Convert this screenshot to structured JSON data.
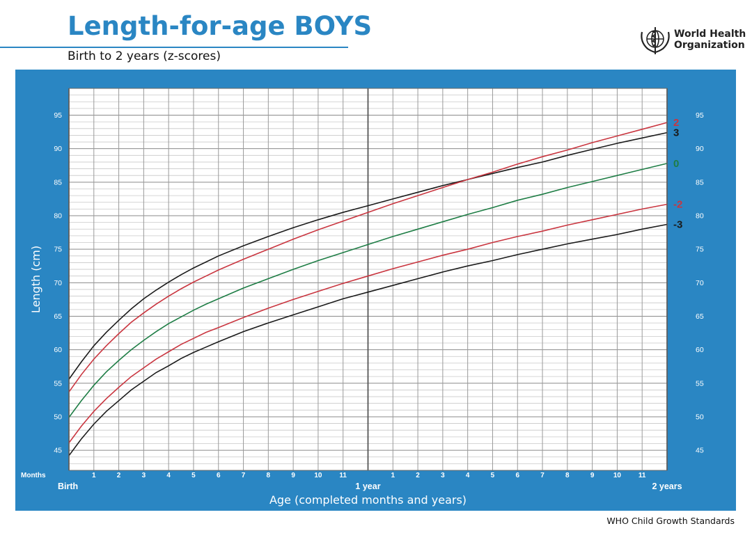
{
  "header": {
    "title": "Length-for-age BOYS",
    "subtitle": "Birth to 2 years (z-scores)",
    "org_line1": "World Health",
    "org_line2": "Organization",
    "logo_icon": "who-emblem-icon"
  },
  "footer": {
    "text": "WHO Child Growth Standards"
  },
  "colors": {
    "brand_blue": "#2a86c3",
    "z3": "#1a1a1a",
    "z2": "#c9353f",
    "z0": "#1e7d45",
    "zneg2": "#c9353f",
    "zneg3": "#1a1a1a"
  },
  "chart_data": {
    "type": "line",
    "title": "Length-for-age BOYS",
    "subtitle": "Birth to 2 years (z-scores)",
    "xlabel": "Age (completed months and years)",
    "ylabel": "Length (cm)",
    "xlim": [
      0,
      24
    ],
    "ylim": [
      42,
      99
    ],
    "y_ticks": [
      45,
      50,
      55,
      60,
      65,
      70,
      75,
      80,
      85,
      90,
      95
    ],
    "x_months_label": "Months",
    "x_tick_labels": [
      "",
      "1",
      "2",
      "3",
      "4",
      "5",
      "6",
      "7",
      "8",
      "9",
      "10",
      "11",
      "",
      "1",
      "2",
      "3",
      "4",
      "5",
      "6",
      "7",
      "8",
      "9",
      "10",
      "11",
      ""
    ],
    "x_major_labels": [
      {
        "x": 0,
        "label": "Birth"
      },
      {
        "x": 12,
        "label": "1 year"
      },
      {
        "x": 24,
        "label": "2 years"
      }
    ],
    "grid": true,
    "x": [
      0,
      0.5,
      1,
      1.5,
      2,
      2.5,
      3,
      3.5,
      4,
      4.5,
      5,
      5.5,
      6,
      7,
      8,
      9,
      10,
      11,
      12,
      13,
      14,
      15,
      16,
      17,
      18,
      19,
      20,
      21,
      22,
      23,
      24
    ],
    "series": [
      {
        "name": "3",
        "color": "#1a1a1a",
        "values": [
          55.6,
          58.2,
          60.6,
          62.6,
          64.4,
          66.1,
          67.6,
          68.9,
          70.1,
          71.2,
          72.2,
          73.1,
          74.0,
          75.5,
          76.9,
          78.2,
          79.4,
          80.5,
          81.5,
          82.5,
          83.5,
          84.5,
          85.4,
          86.3,
          87.2,
          88.0,
          89.0,
          89.9,
          90.8,
          91.6,
          92.4
        ]
      },
      {
        "name": "2",
        "color": "#c9353f",
        "values": [
          53.7,
          56.3,
          58.6,
          60.6,
          62.4,
          64.1,
          65.5,
          66.8,
          68.0,
          69.1,
          70.1,
          71.0,
          71.9,
          73.5,
          75.0,
          76.5,
          77.9,
          79.2,
          80.5,
          81.8,
          83.0,
          84.2,
          85.4,
          86.5,
          87.7,
          88.8,
          89.8,
          90.9,
          91.9,
          92.9,
          93.9
        ]
      },
      {
        "name": "0",
        "color": "#1e7d45",
        "values": [
          49.9,
          52.4,
          54.7,
          56.7,
          58.4,
          60.0,
          61.4,
          62.7,
          63.9,
          64.9,
          65.9,
          66.8,
          67.6,
          69.2,
          70.6,
          72.0,
          73.3,
          74.5,
          75.7,
          76.9,
          78.0,
          79.1,
          80.2,
          81.2,
          82.3,
          83.2,
          84.2,
          85.1,
          86.0,
          86.9,
          87.8
        ]
      },
      {
        "name": "-2",
        "color": "#c9353f",
        "values": [
          46.1,
          48.6,
          50.8,
          52.7,
          54.4,
          56.0,
          57.3,
          58.6,
          59.7,
          60.8,
          61.7,
          62.6,
          63.3,
          64.8,
          66.2,
          67.5,
          68.7,
          69.9,
          71.0,
          72.1,
          73.1,
          74.1,
          75.0,
          76.0,
          76.9,
          77.7,
          78.6,
          79.4,
          80.2,
          81.0,
          81.7
        ]
      },
      {
        "name": "-3",
        "color": "#1a1a1a",
        "values": [
          44.2,
          46.7,
          48.9,
          50.8,
          52.4,
          54.0,
          55.3,
          56.6,
          57.6,
          58.7,
          59.6,
          60.4,
          61.2,
          62.7,
          64.0,
          65.2,
          66.4,
          67.6,
          68.6,
          69.6,
          70.6,
          71.6,
          72.5,
          73.3,
          74.2,
          75.0,
          75.8,
          76.5,
          77.2,
          78.0,
          78.7
        ]
      }
    ]
  }
}
